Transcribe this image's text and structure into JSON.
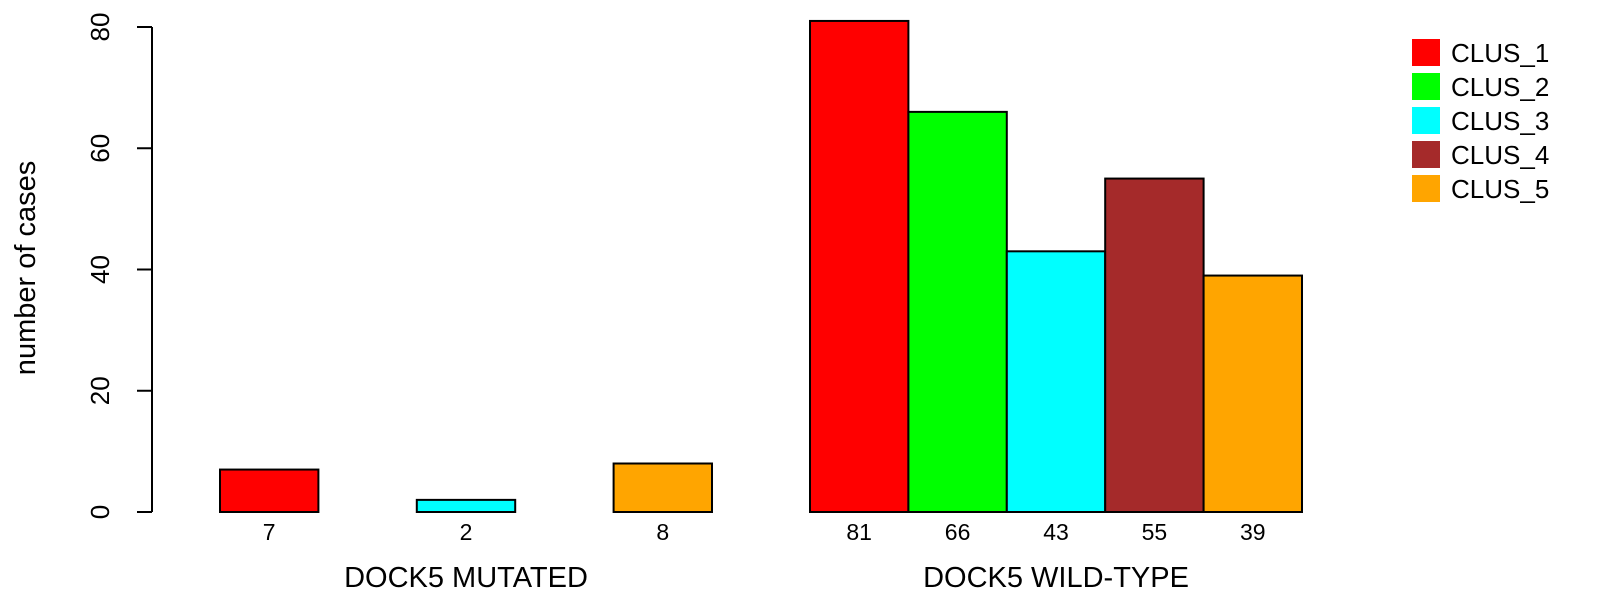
{
  "chart_data": {
    "type": "bar",
    "ylabel": "number of cases",
    "ylim": [
      0,
      80
    ],
    "yticks": [
      0,
      20,
      40,
      60,
      80
    ],
    "series": [
      {
        "name": "CLUS_1",
        "color": "#ff0000"
      },
      {
        "name": "CLUS_2",
        "color": "#00ff00"
      },
      {
        "name": "CLUS_3",
        "color": "#00ffff"
      },
      {
        "name": "CLUS_4",
        "color": "#a52a2a"
      },
      {
        "name": "CLUS_5",
        "color": "#ffa500"
      }
    ],
    "groups": [
      {
        "label": "DOCK5 MUTATED",
        "values": [
          7,
          0,
          2,
          0,
          8
        ],
        "labels": [
          "7",
          "",
          "2",
          "",
          "8"
        ]
      },
      {
        "label": "DOCK5 WILD-TYPE",
        "values": [
          81,
          66,
          43,
          55,
          39
        ],
        "labels": [
          "81",
          "66",
          "43",
          "55",
          "39"
        ]
      }
    ],
    "legend_position": "top-right",
    "grid": false
  }
}
